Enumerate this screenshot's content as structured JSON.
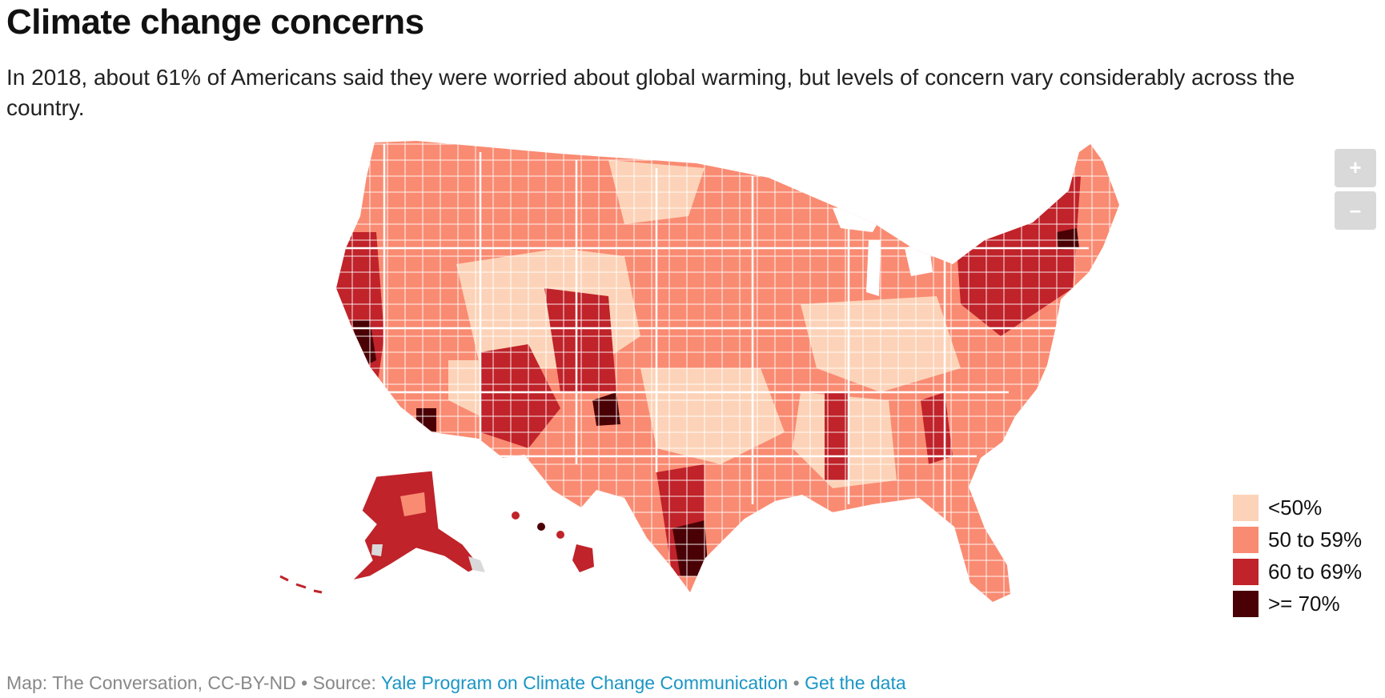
{
  "header": {
    "title": "Climate change concerns",
    "subtitle": "In 2018, about 61% of Americans said they were worried about global warming, but levels of concern vary considerably across the country."
  },
  "zoom": {
    "in_label": "+",
    "out_label": "–"
  },
  "legend": {
    "items": [
      {
        "label": "<50%",
        "color": "#fcd3b8"
      },
      {
        "label": "50 to 59%",
        "color": "#f98b72"
      },
      {
        "label": "60 to 69%",
        "color": "#c0232a"
      },
      {
        "label": ">= 70%",
        "color": "#4a0106"
      }
    ]
  },
  "footer": {
    "credit": "Map: The Conversation, CC-BY-ND",
    "sep1": " • Source: ",
    "source_link": "Yale Program on Climate Change Communication",
    "sep2": " • ",
    "data_link": "Get the data"
  },
  "map": {
    "type": "choropleth",
    "region": "United States counties",
    "metric": "share worried about global warming",
    "missing_color": "#d9d9d9"
  }
}
